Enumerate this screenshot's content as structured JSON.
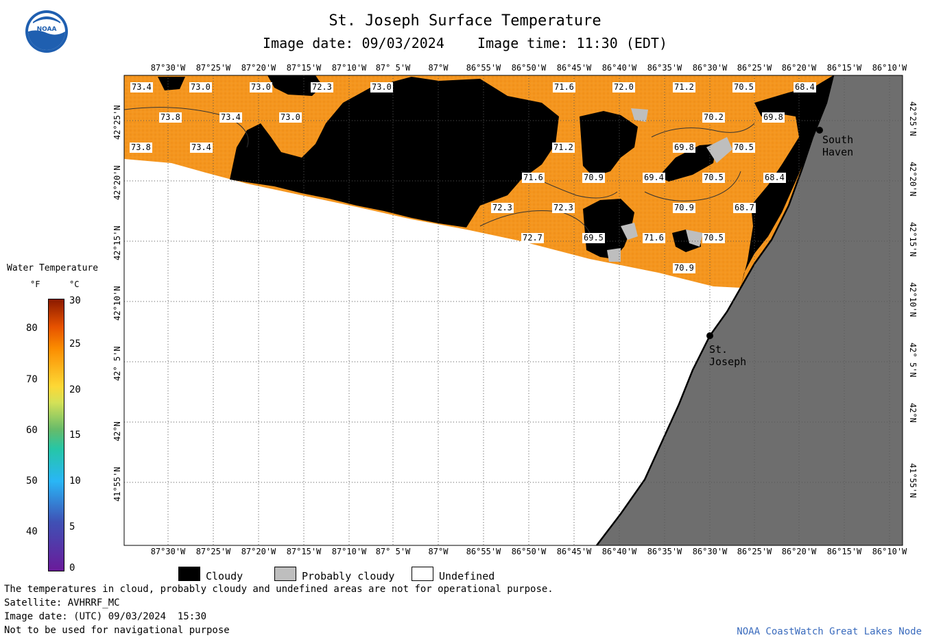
{
  "header": {
    "title": "St. Joseph Surface Temperature",
    "subtitle": "Image date: 09/03/2024    Image time: 11:30 (EDT)"
  },
  "logo": {
    "icon": "noaa-logo-icon",
    "text": "NOAA"
  },
  "map": {
    "lon_labels": [
      "87°30'W",
      "87°25'W",
      "87°20'W",
      "87°15'W",
      "87°10'W",
      "87° 5'W",
      "87°W",
      "86°55'W",
      "86°50'W",
      "86°45'W",
      "86°40'W",
      "86°35'W",
      "86°30'W",
      "86°25'W",
      "86°20'W",
      "86°15'W",
      "86°10'W"
    ],
    "lat_labels": [
      "42°25'N",
      "42°20'N",
      "42°15'N",
      "42°10'N",
      "42° 5'N",
      "42°N",
      "41°55'N"
    ],
    "cities": [
      {
        "name": "South Haven"
      },
      {
        "name": "St. Joseph"
      }
    ],
    "temp_labels": [
      "73.4",
      "73.0",
      "73.0",
      "72.3",
      "73.0",
      "71.6",
      "72.0",
      "71.2",
      "70.5",
      "68.4",
      "73.8",
      "73.4",
      "73.0",
      "70.2",
      "69.8",
      "73.8",
      "73.4",
      "71.2",
      "69.8",
      "70.5",
      "71.6",
      "70.9",
      "69.4",
      "70.5",
      "68.4",
      "72.3",
      "72.3",
      "70.9",
      "68.7",
      "72.7",
      "69.5",
      "71.6",
      "70.5",
      "70.9"
    ],
    "colors": {
      "water": "#f5961e",
      "cloud": "#000000",
      "probably_cloudy": "#bebebe",
      "land": "#6e6e6e",
      "undefined": "#ffffff"
    }
  },
  "colorbar": {
    "title": "Water Temperature",
    "unit_f": "°F",
    "unit_c": "°C",
    "f_ticks": [
      "80",
      "70",
      "60",
      "50",
      "40"
    ],
    "c_ticks": [
      "30",
      "25",
      "20",
      "15",
      "10",
      "5",
      "0"
    ]
  },
  "legend": {
    "items": [
      {
        "label": "Cloudy",
        "color": "#000000"
      },
      {
        "label": "Probably cloudy",
        "color": "#bebebe"
      },
      {
        "label": "Undefined",
        "color": "#ffffff"
      }
    ]
  },
  "footer": {
    "note": "The temperatures in cloud, probably cloudy and undefined areas are not for operational purpose.",
    "satellite": "Satellite: AVHRRF_MC",
    "image_date_utc": "Image date: (UTC) 09/03/2024  15:30",
    "nav_warning": "Not to be used for navigational purpose",
    "credit": "NOAA CoastWatch Great Lakes Node"
  }
}
